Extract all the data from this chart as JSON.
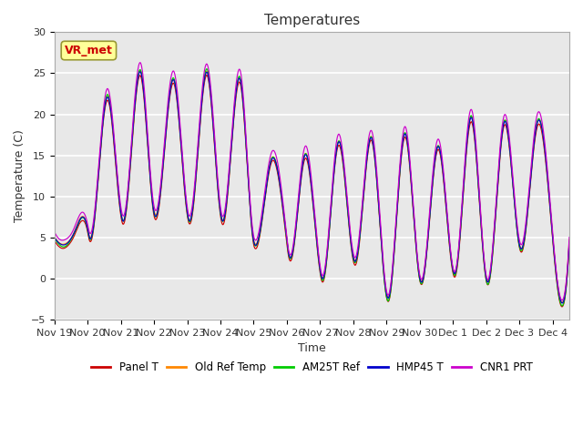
{
  "title": "Temperatures",
  "xlabel": "Time",
  "ylabel": "Temperature (C)",
  "ylim": [
    -5,
    30
  ],
  "yticks": [
    -5,
    0,
    5,
    10,
    15,
    20,
    25,
    30
  ],
  "plot_bg_color": "#e8e8e8",
  "grid_color": "white",
  "line_colors": {
    "Panel T": "#cc0000",
    "Old Ref Temp": "#ff8800",
    "AM25T Ref": "#00cc00",
    "HMP45 T": "#0000cc",
    "CNR1 PRT": "#cc00cc"
  },
  "annotation_text": "VR_met",
  "annotation_box_color": "#ffff99",
  "annotation_text_color": "#cc0000",
  "x_labels": [
    "Nov 19",
    "Nov 20",
    "Nov 21",
    "Nov 22",
    "Nov 23",
    "Nov 24",
    "Nov 25",
    "Nov 26",
    "Nov 27",
    "Nov 28",
    "Nov 29",
    "Nov 30",
    "Dec 1",
    "Dec 2",
    "Dec 3",
    "Dec 4"
  ],
  "legend_entries": [
    "Panel T",
    "Old Ref Temp",
    "AM25T Ref",
    "HMP45 T",
    "CNR1 PRT"
  ]
}
